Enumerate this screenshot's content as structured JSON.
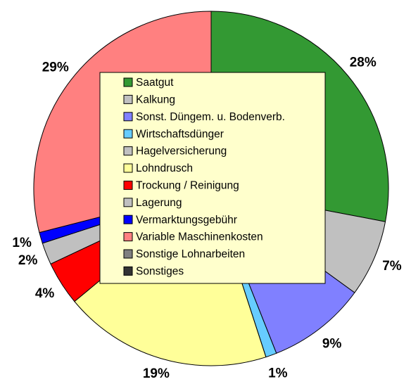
{
  "chart_data": {
    "type": "pie",
    "categories": [
      "Saatgut",
      "Kalkung",
      "Sonst. Düngem. u. Bodenverb.",
      "Wirtschaftsdünger",
      "Hagelversicherung",
      "Lohndrusch",
      "Trockung / Reinigung",
      "Lagerung",
      "Vermarktungsgebühr",
      "Variable Maschinenkosten",
      "Sonstige Lohnarbeiten",
      "Sonstiges"
    ],
    "values": [
      28,
      7,
      9,
      1,
      0,
      19,
      4,
      2,
      1,
      29,
      0,
      0
    ],
    "value_labels": [
      "28%",
      "7%",
      "9%",
      "1%",
      null,
      "19%",
      "4%",
      "2%",
      "1%",
      "29%",
      null,
      null
    ],
    "colors": [
      "#339933",
      "#c0c0c0",
      "#8080ff",
      "#66ccff",
      "#c0c0c0",
      "#ffff99",
      "#ff0000",
      "#c0c0c0",
      "#0000ff",
      "#ff8080",
      "#808080",
      "#333333"
    ],
    "legend": "center"
  }
}
